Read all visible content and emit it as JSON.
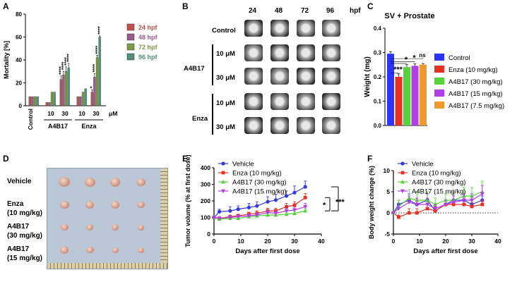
{
  "panels": {
    "a": "A",
    "b": "B",
    "c": "C",
    "d": "D",
    "e": "E",
    "f": "F"
  },
  "colors": {
    "h24": "#c0514d",
    "h48": "#9b5a8c",
    "h72": "#7e9a4a",
    "h96": "#4f8f7c",
    "control": "#2a33ff",
    "enza": "#e33224",
    "a4b17_30": "#55d43a",
    "a4b17_15": "#b23fe6",
    "a4b17_75": "#f09a2c",
    "vehicle": "#2f3ae0"
  },
  "panel_b": {
    "hpf_cols": [
      "24",
      "48",
      "72",
      "96"
    ],
    "hpf_unit": "hpf",
    "row_labels": [
      "Control",
      "10 μM",
      "30 μM",
      "10 μM",
      "30 μM"
    ],
    "group_labels": [
      "A4B17",
      "Enza"
    ]
  },
  "panel_d": {
    "row_labels": [
      "Vehicle",
      "Enza",
      "(10 mg/kg)",
      "A4B17",
      "(30 mg/kg)",
      "A4B17",
      "(15 mg/kg)"
    ]
  },
  "chart_data": [
    {
      "type": "bar",
      "panel": "A",
      "ylabel": "Mortality [%]",
      "ylim": [
        0,
        80
      ],
      "yticks": [
        "0",
        "20",
        "40",
        "60",
        "80"
      ],
      "groups": [
        "Control",
        "A4B17",
        "Enza"
      ],
      "sub_categories": [
        "10",
        "30",
        "10",
        "30"
      ],
      "unit": "μM",
      "categories": [
        "Control",
        "A4B17 10",
        "A4B17 30",
        "Enza 10",
        "Enza 30"
      ],
      "series": [
        {
          "name": "24 hpf",
          "values": [
            8,
            3,
            23,
            8,
            12
          ],
          "errors": [
            0,
            0,
            3,
            0,
            2
          ]
        },
        {
          "name": "48 hpf",
          "values": [
            8,
            3,
            27,
            8,
            25
          ],
          "errors": [
            0,
            0,
            3,
            0,
            3
          ]
        },
        {
          "name": "72 hpf",
          "values": [
            8,
            12,
            30,
            12,
            42
          ],
          "errors": [
            0,
            0,
            4,
            0,
            2
          ]
        },
        {
          "name": "96 hpf",
          "values": [
            8,
            12,
            33,
            15,
            60
          ],
          "errors": [
            0,
            0,
            4,
            0,
            1
          ]
        }
      ],
      "sig": [
        {
          "cat": 2,
          "s": 0,
          "text": "****"
        },
        {
          "cat": 2,
          "s": 1,
          "text": "****"
        },
        {
          "cat": 2,
          "s": 2,
          "text": "****"
        },
        {
          "cat": 2,
          "s": 3,
          "text": "****"
        },
        {
          "cat": 4,
          "s": 0,
          "text": "*"
        },
        {
          "cat": 4,
          "s": 1,
          "text": "****"
        },
        {
          "cat": 4,
          "s": 2,
          "text": "****"
        },
        {
          "cat": 4,
          "s": 3,
          "text": "****"
        }
      ]
    },
    {
      "type": "bar",
      "panel": "C",
      "title": "SV + Prostate",
      "ylabel": "Weight (mg)",
      "ylim": [
        0,
        0.4
      ],
      "yticks": [
        "0.0",
        "0.1",
        "0.2",
        "0.3",
        "0.4"
      ],
      "categories": [
        "Control",
        "Enza (10 mg/kg)",
        "A4B17 (30 mg/kg)",
        "A4B17 (15 mg/kg)",
        "A4B17 (7.5 mg/kg)"
      ],
      "values": [
        0.295,
        0.2,
        0.24,
        0.245,
        0.25
      ],
      "errors": [
        0.008,
        0.012,
        0.01,
        0.008,
        0.005
      ],
      "sig": [
        {
          "cat": 1,
          "text": "***"
        },
        {
          "cat": 2,
          "text": "*"
        },
        {
          "cat": 3,
          "text": "*"
        },
        {
          "cat": 4,
          "text": "ns"
        }
      ]
    },
    {
      "type": "line",
      "panel": "E",
      "xlabel": "Days after first dose",
      "ylabel": "Tumor volume (% at first dose)",
      "xlim": [
        0,
        40
      ],
      "ylim": [
        0,
        400
      ],
      "xticks": [
        "0",
        "10",
        "20",
        "30",
        "40"
      ],
      "yticks": [
        "0",
        "100",
        "200",
        "300",
        "400"
      ],
      "x": [
        0,
        2,
        6,
        9,
        13,
        16,
        20,
        23,
        27,
        30,
        34
      ],
      "series": [
        {
          "name": "Vehicle",
          "values": [
            100,
            135,
            140,
            150,
            160,
            170,
            195,
            205,
            230,
            250,
            285
          ],
          "errors": [
            0,
            15,
            25,
            20,
            25,
            25,
            30,
            35,
            30,
            40,
            35
          ]
        },
        {
          "name": "Enza (10 mg/kg)",
          "values": [
            100,
            95,
            105,
            110,
            120,
            125,
            140,
            140,
            165,
            175,
            220
          ],
          "errors": [
            0,
            8,
            10,
            10,
            12,
            15,
            15,
            15,
            20,
            20,
            25
          ]
        },
        {
          "name": "A4B17 (30 mg/kg)",
          "values": [
            100,
            90,
            95,
            95,
            105,
            110,
            115,
            115,
            120,
            125,
            140
          ],
          "errors": [
            0,
            5,
            8,
            8,
            8,
            10,
            10,
            10,
            12,
            12,
            12
          ]
        },
        {
          "name": "A4B17 (15 mg/kg)",
          "values": [
            100,
            95,
            100,
            105,
            110,
            115,
            130,
            125,
            140,
            145,
            165
          ],
          "errors": [
            0,
            8,
            10,
            10,
            12,
            12,
            15,
            15,
            15,
            18,
            20
          ]
        }
      ],
      "sig": [
        {
          "text": "*"
        },
        {
          "text": "***"
        }
      ]
    },
    {
      "type": "line",
      "panel": "F",
      "xlabel": "Days after first dose",
      "ylabel": "Body weight change (%)",
      "xlim": [
        0,
        40
      ],
      "ylim": [
        -5,
        10
      ],
      "xticks": [
        "0",
        "10",
        "20",
        "30",
        "40"
      ],
      "yticks": [
        "-5",
        "0",
        "5",
        "10"
      ],
      "x": [
        0,
        2,
        6,
        9,
        13,
        16,
        20,
        23,
        27,
        30,
        34
      ],
      "series": [
        {
          "name": "Vehicle",
          "values": [
            0,
            2,
            3,
            2,
            3,
            0.5,
            2,
            3,
            3,
            2,
            3
          ],
          "errors": [
            0,
            1,
            1.5,
            1.5,
            1.5,
            1,
            1,
            1,
            1,
            1,
            1
          ]
        },
        {
          "name": "Enza (10 mg/kg)",
          "values": [
            0,
            -1,
            0,
            0,
            1,
            0.5,
            2,
            2,
            2,
            1.5,
            2
          ],
          "errors": [
            0,
            0.5,
            1,
            1,
            1,
            1,
            1,
            1,
            1,
            1,
            1
          ]
        },
        {
          "name": "A4B17 (30 mg/kg)",
          "values": [
            0,
            1.5,
            3.5,
            3,
            3,
            2,
            3,
            3,
            4,
            4,
            5
          ],
          "errors": [
            0,
            1.5,
            2,
            2,
            2,
            1.5,
            1.5,
            2,
            2,
            2,
            2.5
          ]
        },
        {
          "name": "A4B17 (15 mg/kg)",
          "values": [
            0,
            1,
            2.5,
            2,
            2,
            1,
            2,
            2.5,
            3,
            3,
            4.5
          ],
          "errors": [
            0,
            1,
            1.5,
            1.5,
            1.5,
            1,
            1,
            1.5,
            1.5,
            1.5,
            2
          ]
        }
      ]
    }
  ]
}
